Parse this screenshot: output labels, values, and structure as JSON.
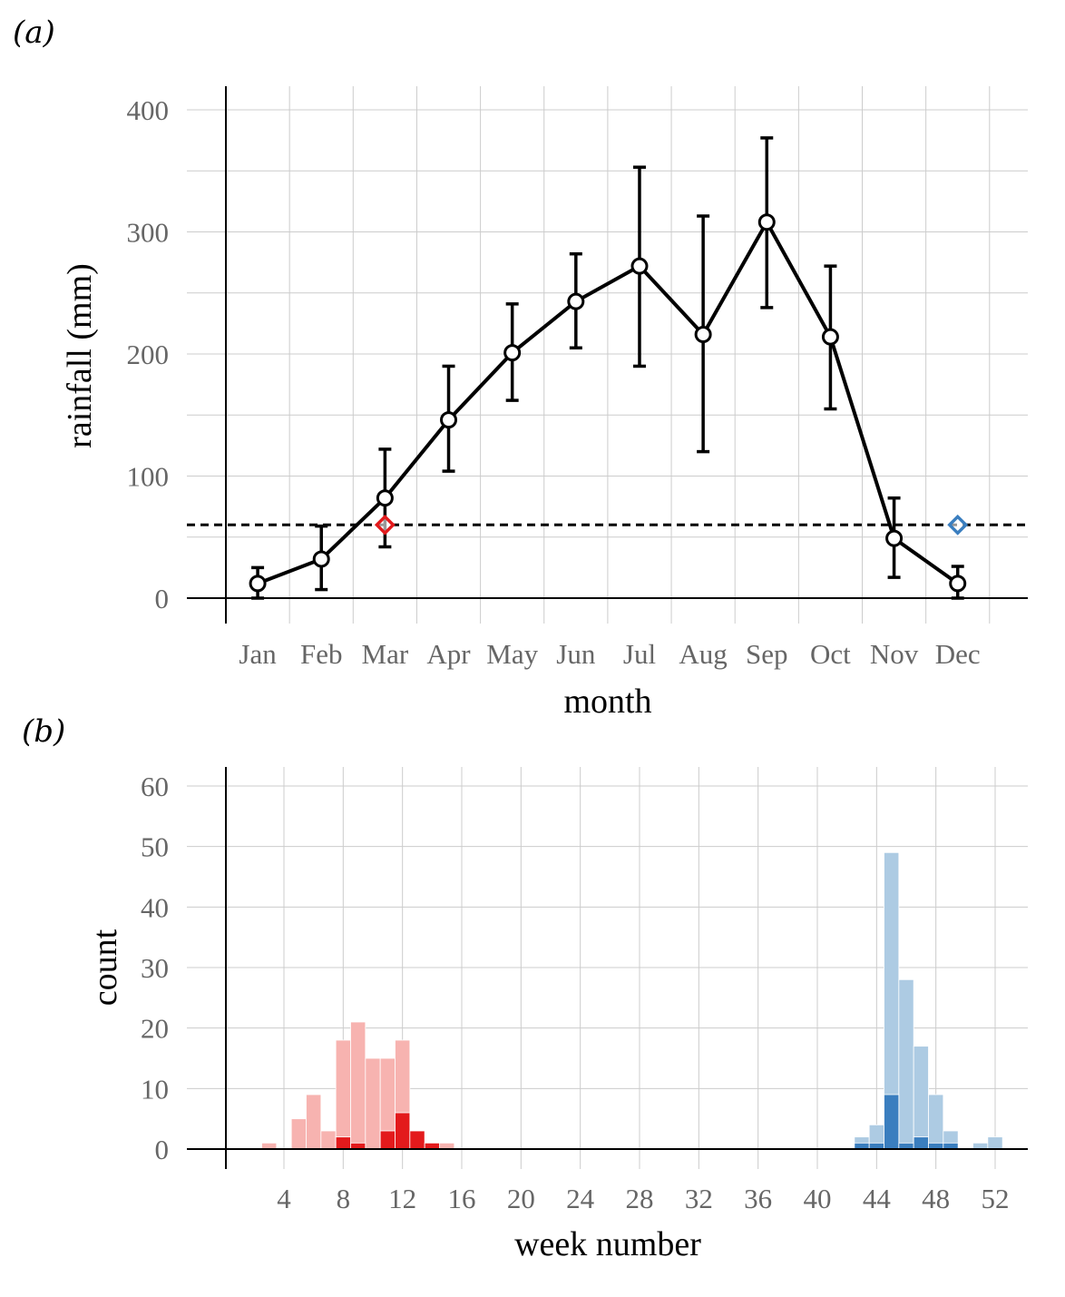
{
  "chart_data": [
    {
      "panel": "(a)",
      "type": "line",
      "xlabel": "month",
      "ylabel": "rainfall (mm)",
      "ylim": [
        0,
        400
      ],
      "yticks": [
        "0",
        "100",
        "200",
        "300",
        "400"
      ],
      "grid": true,
      "threshold": 60,
      "series": [
        {
          "points": [
            {
              "month": "Jan",
              "mean": 12,
              "lower": 0,
              "upper": 25
            },
            {
              "month": "Feb",
              "mean": 32,
              "lower": 7,
              "upper": 59
            },
            {
              "month": "Mar",
              "mean": 82,
              "lower": 42,
              "upper": 122
            },
            {
              "month": "Apr",
              "mean": 146,
              "lower": 104,
              "upper": 190
            },
            {
              "month": "May",
              "mean": 201,
              "lower": 162,
              "upper": 241
            },
            {
              "month": "Jun",
              "mean": 243,
              "lower": 205,
              "upper": 282
            },
            {
              "month": "Jul",
              "mean": 272,
              "lower": 190,
              "upper": 353
            },
            {
              "month": "Aug",
              "mean": 216,
              "lower": 120,
              "upper": 313
            },
            {
              "month": "Sep",
              "mean": 308,
              "lower": 238,
              "upper": 377
            },
            {
              "month": "Oct",
              "mean": 214,
              "lower": 155,
              "upper": 272
            },
            {
              "month": "Nov",
              "mean": 49,
              "lower": 17,
              "upper": 82
            },
            {
              "month": "Dec",
              "mean": 12,
              "lower": 0,
              "upper": 26
            }
          ]
        }
      ],
      "markers": [
        {
          "month_position": 2.5,
          "value": 60,
          "color": "#e31a1c"
        },
        {
          "month_position": 11.5,
          "value": 60,
          "color": "#3a7ebf"
        }
      ]
    },
    {
      "panel": "(b)",
      "type": "bar",
      "xlabel": "week number",
      "ylabel": "count",
      "ylim": [
        0,
        60
      ],
      "yticks": [
        "0",
        "10",
        "20",
        "30",
        "40",
        "50",
        "60"
      ],
      "xticks": [
        "4",
        "8",
        "12",
        "16",
        "20",
        "24",
        "28",
        "32",
        "36",
        "40",
        "44",
        "48",
        "52"
      ],
      "grid": true,
      "series": [
        {
          "color": "#f7b3b0",
          "bars": [
            {
              "week": 3,
              "value": 1
            },
            {
              "week": 5,
              "value": 5
            },
            {
              "week": 6,
              "value": 9
            },
            {
              "week": 7,
              "value": 3
            },
            {
              "week": 8,
              "value": 18
            },
            {
              "week": 9,
              "value": 21
            },
            {
              "week": 10,
              "value": 15
            },
            {
              "week": 11,
              "value": 15
            },
            {
              "week": 12,
              "value": 18
            },
            {
              "week": 13,
              "value": 3
            },
            {
              "week": 14,
              "value": 1
            },
            {
              "week": 15,
              "value": 1
            }
          ]
        },
        {
          "color": "#e31a1c",
          "bars": [
            {
              "week": 8,
              "value": 2
            },
            {
              "week": 9,
              "value": 1
            },
            {
              "week": 11,
              "value": 3
            },
            {
              "week": 12,
              "value": 6
            },
            {
              "week": 13,
              "value": 3
            },
            {
              "week": 14,
              "value": 1
            }
          ]
        },
        {
          "color": "#adcbe3",
          "bars": [
            {
              "week": 43,
              "value": 2
            },
            {
              "week": 44,
              "value": 4
            },
            {
              "week": 45,
              "value": 49
            },
            {
              "week": 46,
              "value": 28
            },
            {
              "week": 47,
              "value": 17
            },
            {
              "week": 48,
              "value": 9
            },
            {
              "week": 49,
              "value": 3
            },
            {
              "week": 51,
              "value": 1
            },
            {
              "week": 52,
              "value": 2
            }
          ]
        },
        {
          "color": "#3a7ebf",
          "bars": [
            {
              "week": 43,
              "value": 1
            },
            {
              "week": 44,
              "value": 1
            },
            {
              "week": 45,
              "value": 9
            },
            {
              "week": 46,
              "value": 1
            },
            {
              "week": 47,
              "value": 2
            },
            {
              "week": 48,
              "value": 1
            },
            {
              "week": 49,
              "value": 1
            }
          ]
        }
      ]
    }
  ]
}
